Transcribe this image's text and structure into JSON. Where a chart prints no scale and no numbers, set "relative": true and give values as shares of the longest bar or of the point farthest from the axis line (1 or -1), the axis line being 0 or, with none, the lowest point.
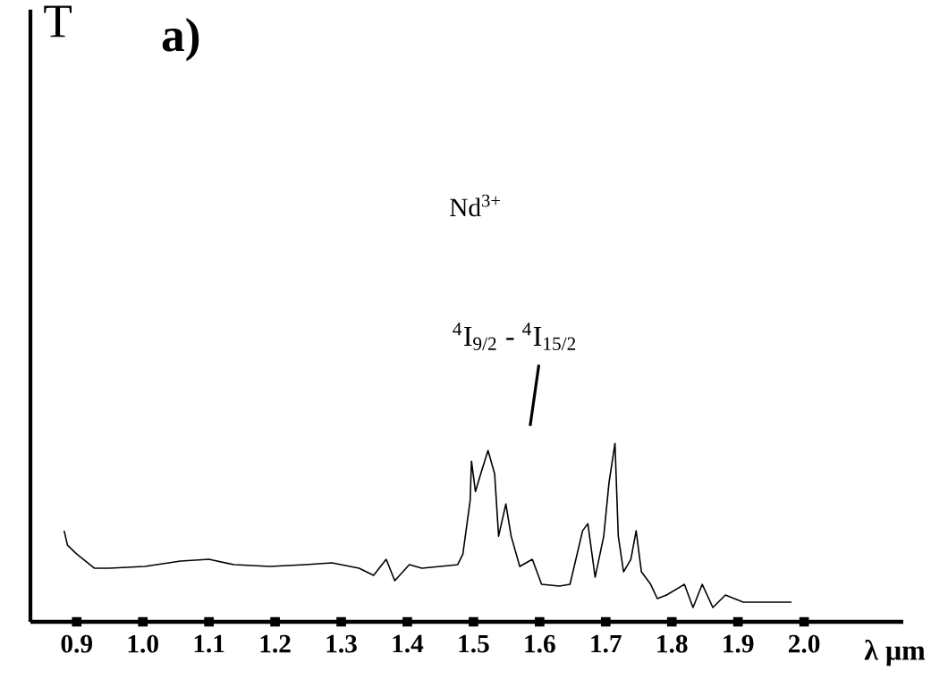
{
  "chart_data": {
    "type": "line",
    "title": "a)",
    "xlabel": "λ μm",
    "relative": true,
    "annotations": [
      "T",
      "Nd$^{3+}$",
      "$^{4}$I$_{9/2}$  -  $^{4}$I$_{15/2}$"
    ],
    "xlim": [
      0.83,
      2.15
    ],
    "xticks": [
      0.9,
      {
        "value": 1.0,
        "label": "1.0"
      },
      1.1,
      1.2,
      1.3,
      1.4,
      1.5,
      1.6,
      1.7,
      1.8,
      1.9,
      {
        "value": 2.0,
        "label": "2.0"
      }
    ],
    "x": [
      0.881,
      0.886,
      0.9,
      0.927,
      0.949,
      1.003,
      1.057,
      1.1,
      1.138,
      1.192,
      1.246,
      1.286,
      1.327,
      1.349,
      1.368,
      1.381,
      1.403,
      1.422,
      1.476,
      1.484,
      1.495,
      1.497,
      1.503,
      1.511,
      1.522,
      1.532,
      1.538,
      1.549,
      1.557,
      1.57,
      1.589,
      1.603,
      1.63,
      1.646,
      1.665,
      1.673,
      1.684,
      1.697,
      1.705,
      1.714,
      1.719,
      1.727,
      1.738,
      1.746,
      1.754,
      1.768,
      1.778,
      1.792,
      1.819,
      1.832,
      1.846,
      1.862,
      1.881,
      1.908,
      1.935,
      1.981
    ],
    "values": [
      0.51,
      0.43,
      0.38,
      0.3,
      0.3,
      0.31,
      0.34,
      0.35,
      0.32,
      0.31,
      0.32,
      0.33,
      0.3,
      0.26,
      0.35,
      0.23,
      0.32,
      0.3,
      0.32,
      0.38,
      0.68,
      0.9,
      0.73,
      0.83,
      0.96,
      0.83,
      0.48,
      0.66,
      0.48,
      0.31,
      0.35,
      0.21,
      0.2,
      0.21,
      0.51,
      0.55,
      0.25,
      0.48,
      0.78,
      1.0,
      0.48,
      0.28,
      0.35,
      0.51,
      0.28,
      0.21,
      0.13,
      0.15,
      0.21,
      0.08,
      0.21,
      0.08,
      0.15,
      0.11,
      0.11,
      0.11
    ],
    "color": "#000000"
  }
}
